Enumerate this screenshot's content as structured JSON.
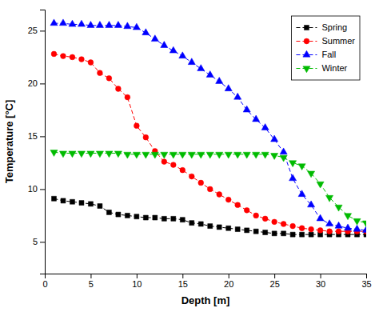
{
  "chart_data": {
    "type": "line",
    "x_label": "Depth [m]",
    "y_label": "Temperature [°C]",
    "x": [
      1,
      2,
      3,
      4,
      5,
      6,
      7,
      8,
      9,
      10,
      11,
      12,
      13,
      14,
      15,
      16,
      17,
      18,
      19,
      20,
      21,
      22,
      23,
      24,
      25,
      26,
      27,
      28,
      29,
      30,
      31,
      32,
      33,
      34,
      35
    ],
    "series": [
      {
        "name": "Spring",
        "color": "#000000",
        "marker": "square",
        "values": [
          9.1,
          8.9,
          8.8,
          8.7,
          8.6,
          8.4,
          7.8,
          7.6,
          7.5,
          7.4,
          7.3,
          7.3,
          7.2,
          7.2,
          7.1,
          6.8,
          6.7,
          6.5,
          6.4,
          6.3,
          6.2,
          6.1,
          6.0,
          5.9,
          5.8,
          5.8,
          5.7,
          5.7,
          5.7,
          5.7,
          5.7,
          5.7,
          5.7,
          5.7,
          5.7
        ]
      },
      {
        "name": "Summer",
        "color": "#ff0000",
        "marker": "circle",
        "values": [
          22.8,
          22.6,
          22.5,
          22.3,
          22.0,
          21.0,
          20.5,
          19.5,
          18.7,
          16.0,
          14.9,
          13.6,
          12.6,
          12.3,
          11.8,
          11.2,
          10.6,
          10.0,
          9.5,
          9.0,
          8.5,
          8.0,
          7.5,
          7.2,
          6.9,
          6.7,
          6.5,
          6.3,
          6.2,
          6.1,
          6.0,
          6.0,
          6.0,
          6.0,
          6.0
        ]
      },
      {
        "name": "Fall",
        "color": "#0000ff",
        "marker": "triangle-up",
        "values": [
          25.7,
          25.7,
          25.6,
          25.6,
          25.5,
          25.5,
          25.5,
          25.5,
          25.4,
          25.3,
          24.8,
          24.2,
          23.6,
          23.1,
          22.6,
          22.0,
          21.4,
          20.8,
          20.2,
          19.5,
          18.7,
          17.5,
          16.6,
          15.8,
          14.7,
          13.5,
          11.0,
          9.5,
          8.5,
          7.2,
          6.7,
          6.5,
          6.3,
          6.2,
          6.1
        ]
      },
      {
        "name": "Winter",
        "color": "#00bb00",
        "marker": "triangle-down",
        "values": [
          13.5,
          13.4,
          13.4,
          13.4,
          13.4,
          13.4,
          13.4,
          13.4,
          13.3,
          13.3,
          13.3,
          13.3,
          13.3,
          13.3,
          13.3,
          13.3,
          13.3,
          13.3,
          13.3,
          13.3,
          13.3,
          13.3,
          13.3,
          13.3,
          13.2,
          13.0,
          12.5,
          12.2,
          11.5,
          10.5,
          9.2,
          8.3,
          7.5,
          7.0,
          6.8
        ]
      }
    ],
    "xlim": [
      0,
      35
    ],
    "ylim": [
      2,
      27
    ],
    "xticks": [
      0,
      5,
      10,
      15,
      20,
      25,
      30,
      35
    ],
    "yticks": [
      5,
      10,
      15,
      20,
      25
    ],
    "line_style": "dashed",
    "legend": "upper right",
    "grid": false
  }
}
